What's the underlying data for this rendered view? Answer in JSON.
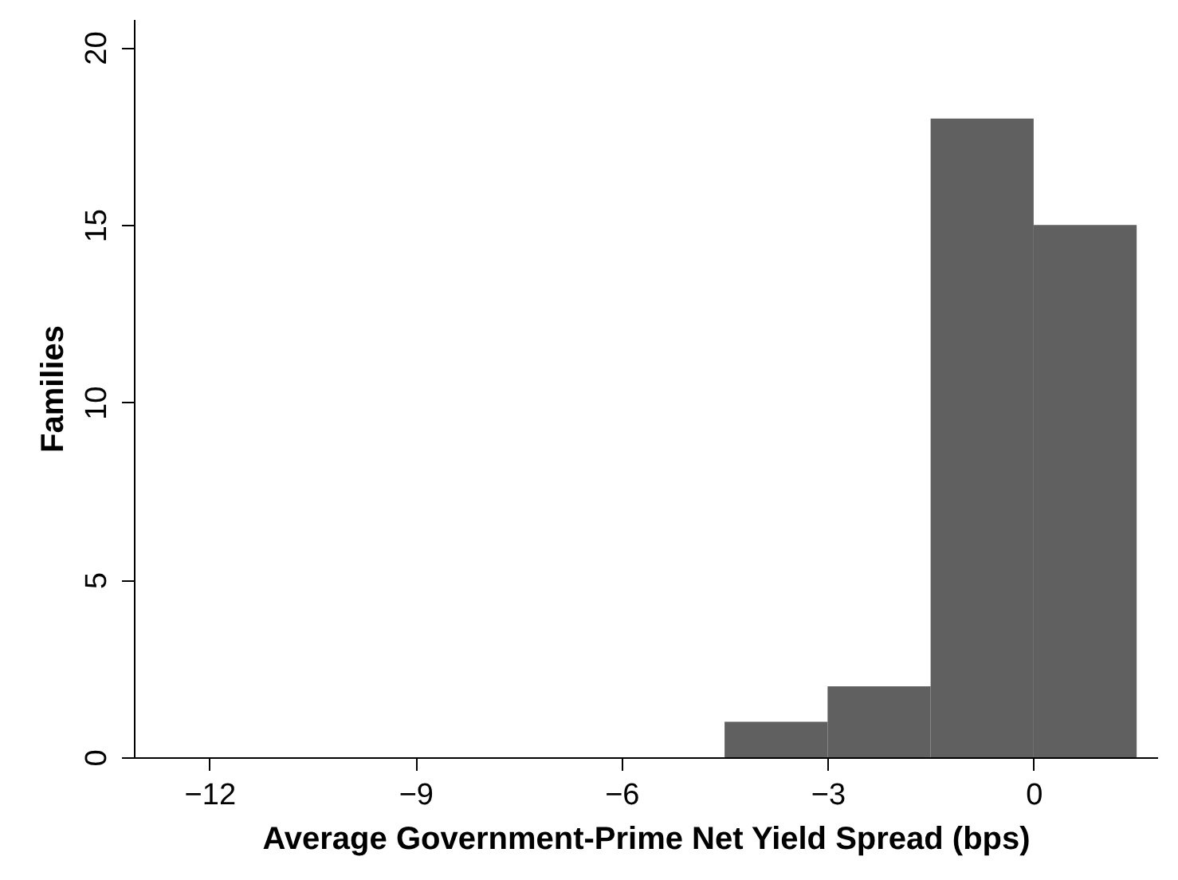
{
  "chart_data": {
    "type": "histogram",
    "xlabel": "Average Government-Prime Net Yield Spread (bps)",
    "ylabel": "Families",
    "bins": [
      -4.5,
      -3,
      -1.5,
      0,
      1.5
    ],
    "values": [
      1,
      2,
      18,
      15
    ],
    "color": "#606060",
    "xlim": [
      -13.1,
      1.8
    ],
    "xticks": [
      -12,
      -9,
      -6,
      -3,
      0
    ],
    "ylim": [
      0,
      20.8
    ],
    "yticks": [
      0,
      5,
      10,
      15,
      20
    ],
    "grid": false
  }
}
